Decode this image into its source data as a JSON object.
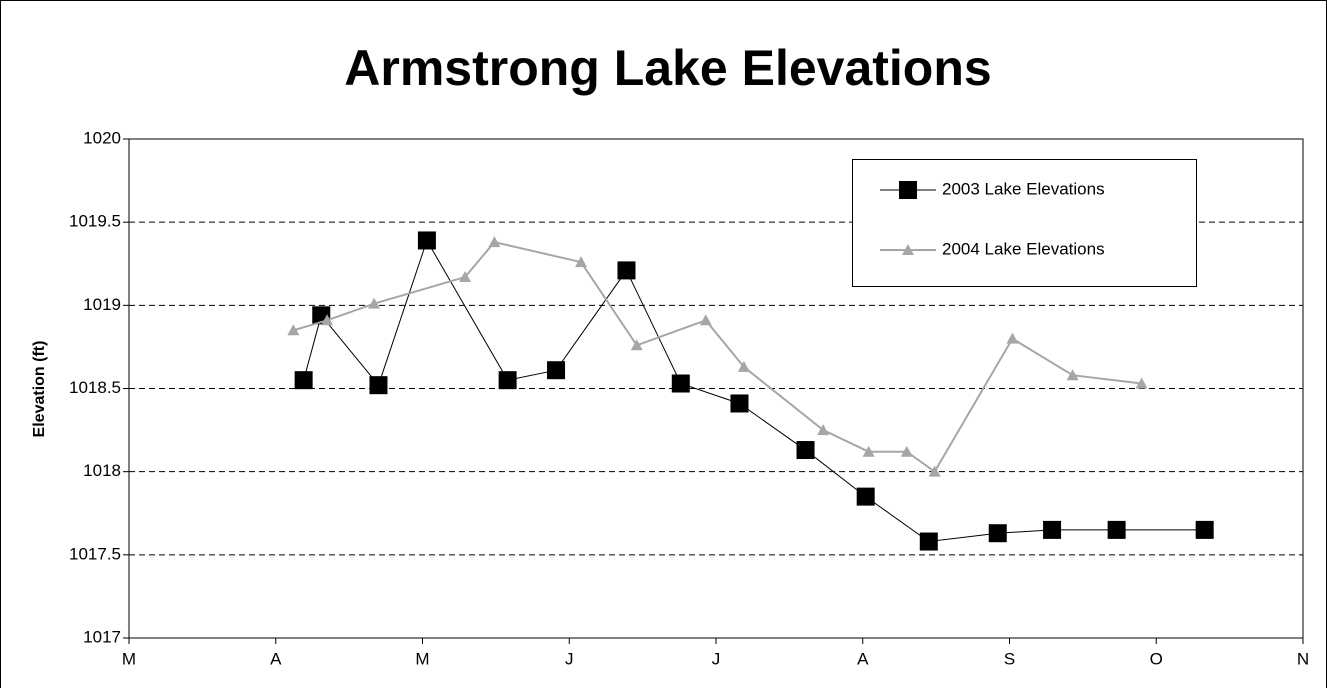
{
  "chart_data": {
    "type": "line",
    "title": "Armstrong Lake Elevations",
    "y_label": "Elevation (ft)",
    "xlim": [
      0,
      8
    ],
    "xticks": [
      {
        "value": 0,
        "label": "M"
      },
      {
        "value": 1,
        "label": "A"
      },
      {
        "value": 2,
        "label": "M"
      },
      {
        "value": 3,
        "label": "J"
      },
      {
        "value": 4,
        "label": "J"
      },
      {
        "value": 5,
        "label": "A"
      },
      {
        "value": 6,
        "label": "S"
      },
      {
        "value": 7,
        "label": "O"
      },
      {
        "value": 8,
        "label": "N"
      }
    ],
    "ylim": [
      1017,
      1020
    ],
    "yticks": [
      1017,
      1017.5,
      1018,
      1018.5,
      1019,
      1019.5,
      1020
    ],
    "grid": true,
    "legend": "upper right",
    "series": [
      {
        "name": "2003 Lake Elevations",
        "color": "#000000",
        "marker": "square",
        "x": [
          1.19,
          1.31,
          1.7,
          2.03,
          2.58,
          2.91,
          3.39,
          3.76,
          4.16,
          4.61,
          5.02,
          5.45,
          5.92,
          6.29,
          6.73,
          7.33
        ],
        "values": [
          1018.55,
          1018.94,
          1018.52,
          1019.39,
          1018.55,
          1018.61,
          1019.21,
          1018.53,
          1018.41,
          1018.13,
          1017.85,
          1017.58,
          1017.63,
          1017.65,
          1017.65,
          1017.65
        ]
      },
      {
        "name": "2004 Lake Elevations",
        "color": "#a6a6a6",
        "marker": "triangle",
        "x": [
          1.12,
          1.35,
          1.67,
          2.29,
          2.49,
          3.08,
          3.46,
          3.93,
          4.19,
          4.73,
          5.04,
          5.3,
          5.49,
          6.02,
          6.43,
          6.9
        ],
        "values": [
          1018.85,
          1018.91,
          1019.01,
          1019.17,
          1019.38,
          1019.26,
          1018.76,
          1018.91,
          1018.63,
          1018.25,
          1018.12,
          1018.12,
          1018.0,
          1018.8,
          1018.58,
          1018.53
        ]
      }
    ]
  }
}
